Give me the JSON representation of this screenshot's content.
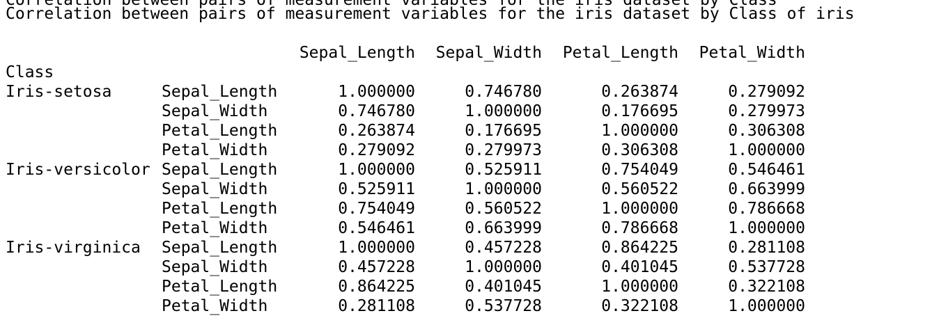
{
  "output": {
    "cut_off_line": "Correlation between pairs of measurement variables for the iris dataset by Class",
    "title": "Correlation between pairs of measurement variables for the iris dataset by Class of iris",
    "index_name": "Class",
    "columns": [
      "Sepal_Length",
      "Sepal_Width",
      "Petal_Length",
      "Petal_Width"
    ],
    "rows": [
      {
        "class": "Iris-setosa",
        "variable": "Sepal_Length",
        "values": [
          "1.000000",
          "0.746780",
          "0.263874",
          "0.279092"
        ]
      },
      {
        "class": "",
        "variable": "Sepal_Width",
        "values": [
          "0.746780",
          "1.000000",
          "0.176695",
          "0.279973"
        ]
      },
      {
        "class": "",
        "variable": "Petal_Length",
        "values": [
          "0.263874",
          "0.176695",
          "1.000000",
          "0.306308"
        ]
      },
      {
        "class": "",
        "variable": "Petal_Width",
        "values": [
          "0.279092",
          "0.279973",
          "0.306308",
          "1.000000"
        ]
      },
      {
        "class": "Iris-versicolor",
        "variable": "Sepal_Length",
        "values": [
          "1.000000",
          "0.525911",
          "0.754049",
          "0.546461"
        ]
      },
      {
        "class": "",
        "variable": "Sepal_Width",
        "values": [
          "0.525911",
          "1.000000",
          "0.560522",
          "0.663999"
        ]
      },
      {
        "class": "",
        "variable": "Petal_Length",
        "values": [
          "0.754049",
          "0.560522",
          "1.000000",
          "0.786668"
        ]
      },
      {
        "class": "",
        "variable": "Petal_Width",
        "values": [
          "0.546461",
          "0.663999",
          "0.786668",
          "1.000000"
        ]
      },
      {
        "class": "Iris-virginica",
        "variable": "Sepal_Length",
        "values": [
          "1.000000",
          "0.457228",
          "0.864225",
          "0.281108"
        ]
      },
      {
        "class": "",
        "variable": "Sepal_Width",
        "values": [
          "0.457228",
          "1.000000",
          "0.401045",
          "0.537728"
        ]
      },
      {
        "class": "",
        "variable": "Petal_Length",
        "values": [
          "0.864225",
          "0.401045",
          "1.000000",
          "0.322108"
        ]
      },
      {
        "class": "",
        "variable": "Petal_Width",
        "values": [
          "0.281108",
          "0.537728",
          "0.322108",
          "1.000000"
        ]
      }
    ]
  }
}
